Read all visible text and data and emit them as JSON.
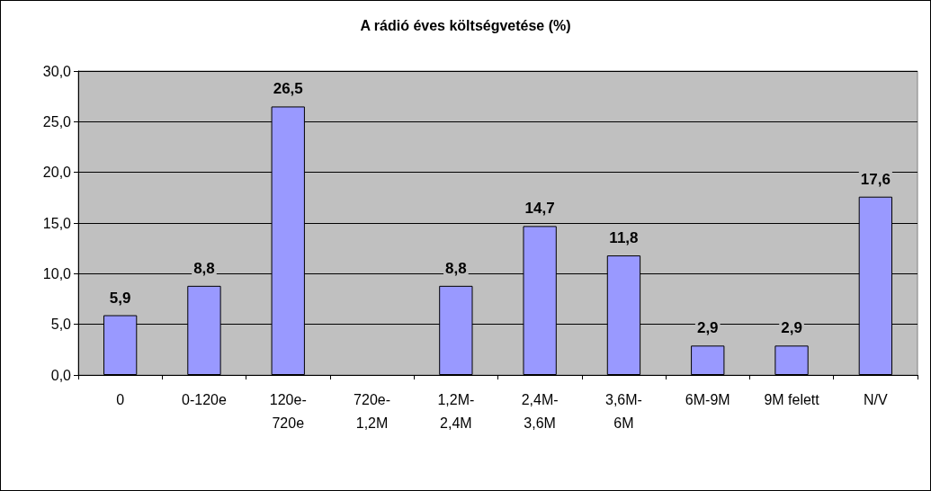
{
  "chart_data": {
    "type": "bar",
    "title": "A rádió éves költségvetése (%)",
    "categories": [
      "0",
      "0-120e",
      "120e-720e",
      "720e-1,2M",
      "1,2M-2,4M",
      "2,4M-3,6M",
      "3,6M-6M",
      "6M-9M",
      "9M felett",
      "N/V"
    ],
    "values": [
      5.9,
      8.8,
      26.5,
      null,
      8.8,
      14.7,
      11.8,
      2.9,
      2.9,
      17.6
    ],
    "value_labels": [
      "5,9",
      "8,8",
      "26,5",
      null,
      "8,8",
      "14,7",
      "11,8",
      "2,9",
      "2,9",
      "17,6"
    ],
    "color": "#9999ff",
    "ylim": [
      0,
      30
    ],
    "yticks": [
      {
        "value": 0,
        "label": "0,0"
      },
      {
        "value": 5,
        "label": "5,0"
      },
      {
        "value": 10,
        "label": "10,0"
      },
      {
        "value": 15,
        "label": "15,0"
      },
      {
        "value": 20,
        "label": "20,0"
      },
      {
        "value": 25,
        "label": "25,0"
      },
      {
        "value": 30,
        "label": "30,0"
      }
    ],
    "grid": "y"
  }
}
